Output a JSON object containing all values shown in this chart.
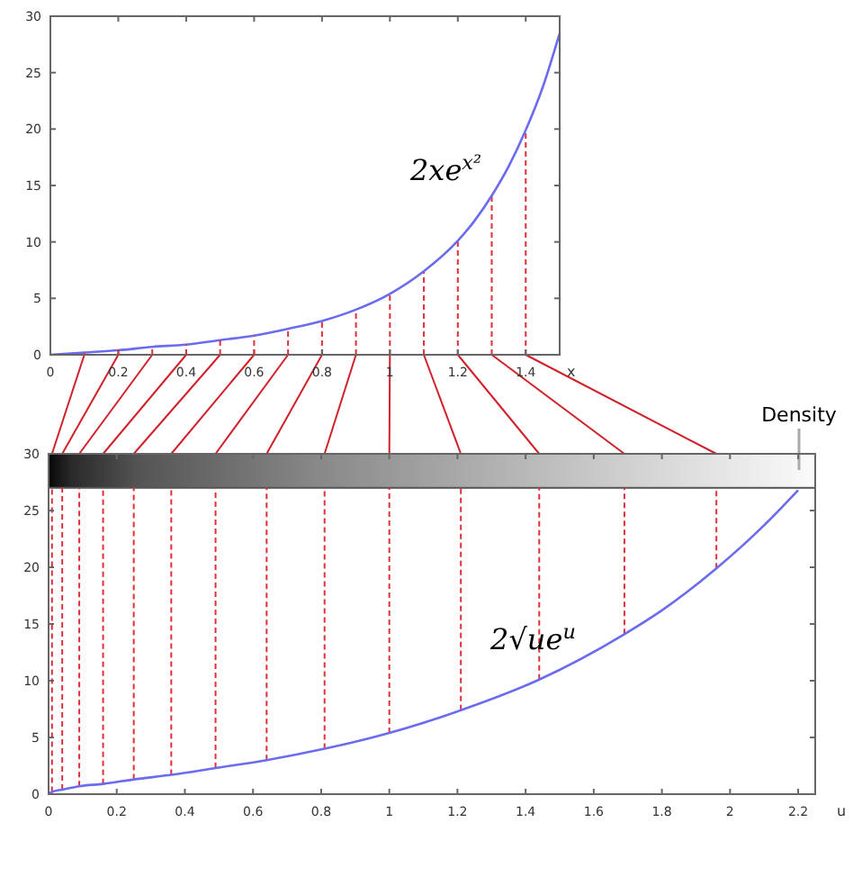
{
  "chart_data": [
    {
      "type": "line",
      "xlabel": "x",
      "xlim": [
        0,
        1.5
      ],
      "xticks": [
        0,
        0.2,
        0.4,
        0.6,
        0.8,
        1,
        1.2,
        1.4
      ],
      "ylim": [
        0,
        30
      ],
      "yticks": [
        0,
        5,
        10,
        15,
        20,
        25,
        30
      ],
      "annotations": [
        "2xe$^{x²}$"
      ],
      "series": [
        {
          "color": "#6b6bf0",
          "x": [
            0,
            0.1,
            0.2,
            0.3,
            0.4,
            0.5,
            0.6,
            0.7,
            0.8,
            0.9,
            1,
            1.1,
            1.2,
            1.25,
            1.3,
            1.35,
            1.4,
            1.45,
            1.5
          ],
          "values": [
            0,
            0.2,
            0.4,
            0.7,
            0.9,
            1.3,
            1.7,
            2.3,
            3.0,
            4.0,
            5.4,
            7.4,
            10.1,
            11.9,
            14.1,
            16.7,
            19.9,
            23.7,
            28.5
          ]
        }
      ],
      "ref_lines": [
        {
          "axis": "x",
          "value": 0.8,
          "color": "#e0303a",
          "line_style": "dashed"
        },
        {
          "axis": "x",
          "value": 0.9,
          "color": "#e0303a",
          "line_style": "dashed"
        },
        {
          "axis": "x",
          "value": 1,
          "color": "#e0303a",
          "line_style": "dashed"
        },
        {
          "axis": "x",
          "value": 1.1,
          "color": "#e0303a",
          "line_style": "dashed"
        },
        {
          "axis": "x",
          "value": 1.2,
          "color": "#e0303a",
          "line_style": "dashed"
        },
        {
          "axis": "x",
          "value": 1.3,
          "color": "#e0303a",
          "line_style": "dashed"
        },
        {
          "axis": "x",
          "value": 1.4,
          "color": "#e0303a",
          "line_style": "dashed"
        }
      ]
    },
    {
      "type": "line",
      "xlabel": "u",
      "xlim": [
        0,
        2.25
      ],
      "xticks": [
        0,
        0.2,
        0.4,
        0.6,
        0.8,
        1,
        1.2,
        1.4,
        1.6,
        1.8,
        2,
        2.2
      ],
      "ylim": [
        0,
        30
      ],
      "yticks": [
        0,
        5,
        10,
        15,
        20,
        25,
        30
      ],
      "annotations": [
        {
          "text": "2√ue$^{u}$",
          "x": 1.45,
          "y": 10.1
        }
      ],
      "bands": [
        {
          "axis": "y",
          "from": 27,
          "to": 30,
          "label": "Density"
        }
      ],
      "series": [
        {
          "color": "#6b6bf0",
          "x": [
            0,
            0.01,
            0.04,
            0.09,
            0.16,
            0.25,
            0.36,
            0.49,
            0.64,
            0.81,
            1,
            1.21,
            1.44,
            1.69,
            1.8,
            1.96,
            2.1,
            2.2
          ],
          "values": [
            0,
            0.2,
            0.4,
            0.7,
            0.9,
            1.3,
            1.7,
            2.3,
            3.0,
            4.0,
            5.4,
            7.4,
            10.1,
            14.1,
            16.2,
            19.9,
            23.7,
            26.8
          ]
        }
      ],
      "ref_lines": [
        {
          "axis": "x",
          "value": 0.01,
          "color": "#e0303a",
          "line_style": "dashed"
        },
        {
          "axis": "x",
          "value": 0.04,
          "color": "#e0303a",
          "line_style": "dashed"
        },
        {
          "axis": "x",
          "value": 0.09,
          "color": "#e0303a",
          "line_style": "dashed"
        },
        {
          "axis": "x",
          "value": 0.16,
          "color": "#e0303a",
          "line_style": "dashed"
        },
        {
          "axis": "x",
          "value": 0.25,
          "color": "#e0303a",
          "line_style": "dashed"
        },
        {
          "axis": "x",
          "value": 0.36,
          "color": "#e0303a",
          "line_style": "dashed"
        },
        {
          "axis": "x",
          "value": 0.49,
          "color": "#e0303a",
          "line_style": "dashed"
        },
        {
          "axis": "x",
          "value": 0.64,
          "color": "#e0303a",
          "line_style": "dashed"
        },
        {
          "axis": "x",
          "value": 0.81,
          "color": "#e0303a",
          "line_style": "dashed"
        },
        {
          "axis": "x",
          "value": 1,
          "color": "#e0303a",
          "line_style": "dashed"
        },
        {
          "axis": "x",
          "value": 1.21,
          "color": "#e0303a",
          "line_style": "dashed"
        },
        {
          "axis": "x",
          "value": 1.44,
          "color": "#e0303a",
          "line_style": "dashed"
        },
        {
          "axis": "x",
          "value": 1.69,
          "color": "#e0303a",
          "line_style": "dashed"
        },
        {
          "axis": "x",
          "value": 1.96,
          "color": "#e0303a",
          "line_style": "dashed"
        }
      ]
    }
  ]
}
